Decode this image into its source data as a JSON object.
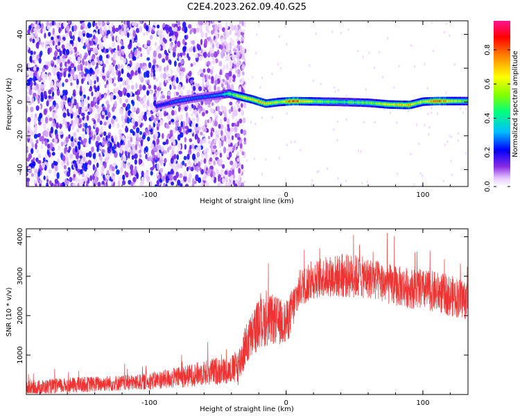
{
  "title": "C2E4.2023.262.09.40.G25",
  "chart_data": [
    {
      "type": "heatmap",
      "xlabel": "Height of straight line (km)",
      "ylabel": "Frequency (Hz)",
      "xlim": [
        -190,
        133
      ],
      "ylim": [
        -50,
        48
      ],
      "xticks": [
        -100,
        0,
        100
      ],
      "yticks": [
        -40,
        -20,
        0,
        20,
        40
      ],
      "colorbar": {
        "label": "Normalized spectral amplitude",
        "range": [
          0,
          0.97
        ],
        "ticks": [
          0.0,
          0.2,
          0.4,
          0.6,
          0.8
        ],
        "colors": [
          "#ffffff",
          "#e6c8ff",
          "#8a2be2",
          "#0000ff",
          "#00bfff",
          "#00ff7f",
          "#7fff00",
          "#ffff00",
          "#ff8c00",
          "#ff0000",
          "#ff1493"
        ]
      },
      "noise_region_x": [
        -190,
        -40
      ],
      "signal_track": [
        {
          "x": -95,
          "f": -2.5,
          "a": 0.25
        },
        {
          "x": -80,
          "f": 0.5,
          "a": 0.3
        },
        {
          "x": -65,
          "f": 2.5,
          "a": 0.28
        },
        {
          "x": -50,
          "f": 4.0,
          "a": 0.3
        },
        {
          "x": -42,
          "f": 5.0,
          "a": 0.5
        },
        {
          "x": -35,
          "f": 3.5,
          "a": 0.6
        },
        {
          "x": -25,
          "f": 1.5,
          "a": 0.75
        },
        {
          "x": -15,
          "f": -1.0,
          "a": 0.75
        },
        {
          "x": -5,
          "f": 0.0,
          "a": 0.65
        },
        {
          "x": 5,
          "f": 0.5,
          "a": 0.9
        },
        {
          "x": 20,
          "f": 0.3,
          "a": 0.6
        },
        {
          "x": 40,
          "f": 0.0,
          "a": 0.5
        },
        {
          "x": 60,
          "f": -0.5,
          "a": 0.55
        },
        {
          "x": 75,
          "f": -1.5,
          "a": 0.7
        },
        {
          "x": 90,
          "f": -1.8,
          "a": 0.75
        },
        {
          "x": 100,
          "f": 0.2,
          "a": 0.6
        },
        {
          "x": 110,
          "f": 0.5,
          "a": 0.9
        },
        {
          "x": 133,
          "f": 0.5,
          "a": 0.5
        }
      ]
    },
    {
      "type": "line",
      "xlabel": "Height of straight line (km)",
      "ylabel": "SNR (10 * v/v)",
      "xlim": [
        -190,
        133
      ],
      "ylim": [
        0,
        4200
      ],
      "xticks": [
        -100,
        0,
        100
      ],
      "yticks": [
        1000,
        2000,
        3000,
        4000
      ],
      "color": "#ee3333",
      "series": [
        {
          "x": [
            -190,
            -170,
            -150,
            -130,
            -110,
            -90,
            -75,
            -60,
            -50,
            -42,
            -35,
            -30,
            -20,
            -10,
            0,
            5,
            10,
            20,
            30,
            40,
            50,
            60,
            70,
            80,
            90,
            100,
            110,
            120,
            133
          ],
          "mean": [
            150,
            200,
            250,
            280,
            300,
            380,
            450,
            550,
            600,
            600,
            700,
            1200,
            1800,
            1900,
            1800,
            2200,
            2700,
            2900,
            3000,
            3000,
            3000,
            2950,
            2850,
            2750,
            2700,
            2650,
            2600,
            2500,
            2400
          ],
          "spread": [
            250,
            250,
            250,
            250,
            250,
            300,
            350,
            400,
            450,
            400,
            600,
            700,
            800,
            800,
            700,
            700,
            600,
            600,
            650,
            700,
            700,
            650,
            650,
            650,
            650,
            650,
            650,
            650,
            650
          ]
        }
      ]
    }
  ]
}
